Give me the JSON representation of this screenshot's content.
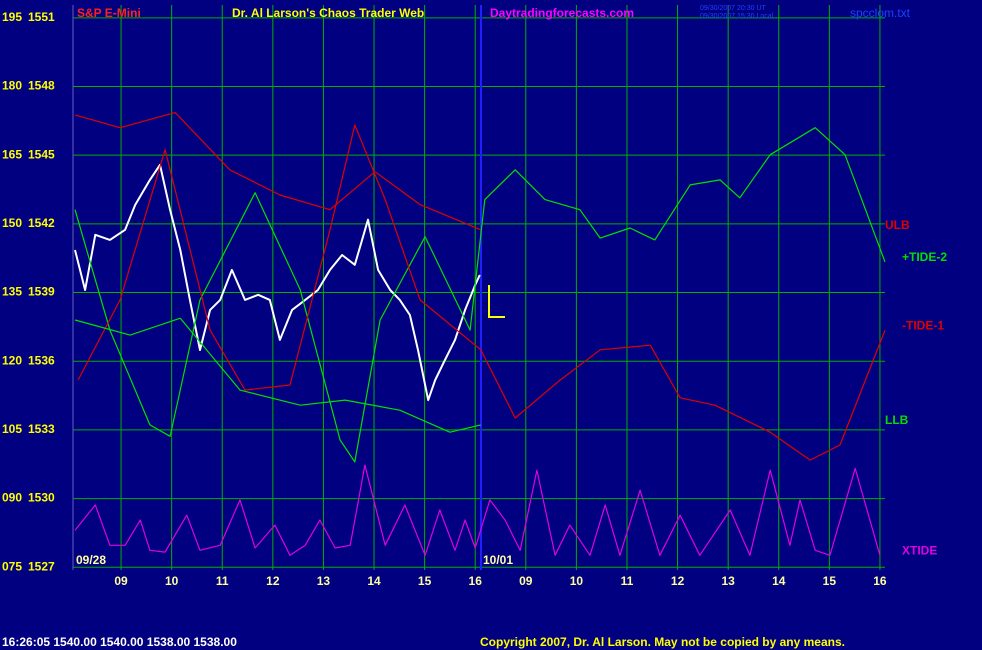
{
  "chart_data": {
    "type": "line",
    "title": "Dr. Al Larson's Chaos Trader Web",
    "symbol": "S&P E-Mini",
    "site": "Daytradingforecasts.com",
    "timestamps": [
      "09/30/2007 20:30 UT",
      "09/30/2007 15:30 Local"
    ],
    "file": "spcclom.txt",
    "status": "16:26:05  1540.00 1540.00 1538.00 1538.00",
    "copyright": "Copyright 2007, Dr. Al Larson. May not be copied by any means.",
    "date_labels": [
      "09/28",
      "10/01"
    ],
    "grid": true,
    "xlim": [
      0.05,
      16.1
    ],
    "xticks": [
      {
        "value": 1,
        "label": "09"
      },
      {
        "value": 2,
        "label": "10"
      },
      {
        "value": 3,
        "label": "11"
      },
      {
        "value": 4,
        "label": "12"
      },
      {
        "value": 5,
        "label": "13"
      },
      {
        "value": 6,
        "label": "14"
      },
      {
        "value": 7,
        "label": "15"
      },
      {
        "value": 8,
        "label": "16"
      },
      {
        "value": 9,
        "label": "09"
      },
      {
        "value": 10,
        "label": "10"
      },
      {
        "value": 11,
        "label": "11"
      },
      {
        "value": 12,
        "label": "12"
      },
      {
        "value": 13,
        "label": "13"
      },
      {
        "value": 14,
        "label": "14"
      },
      {
        "value": 15,
        "label": "15"
      },
      {
        "value": 16,
        "label": "16"
      }
    ],
    "ylim": [
      74.4,
      197.8
    ],
    "yticks": [
      195,
      180,
      165,
      150,
      135,
      120,
      105,
      {
        "value": 90,
        "label": "090"
      },
      {
        "value": 75,
        "label": "075"
      }
    ],
    "y2lim": [
      1526.88,
      1551.56
    ],
    "y2ticks": [
      1551,
      1548,
      1545,
      1542,
      1539,
      1536,
      1533,
      1530,
      1527
    ],
    "series": [
      {
        "color": "#ffffff",
        "axis": "y2",
        "x": [
          0.09,
          0.29,
          0.49,
          0.78,
          1.08,
          1.28,
          1.57,
          1.77,
          1.97,
          2.17,
          2.36,
          2.56,
          2.76,
          2.96,
          3.19,
          3.45,
          3.71,
          3.94,
          4.14,
          4.38,
          4.64,
          4.89,
          5.13,
          5.37,
          5.62,
          5.88,
          6.08,
          6.32,
          6.51,
          6.71,
          6.87,
          7.07,
          7.21,
          7.4,
          7.6,
          7.8,
          8.0,
          8.09
        ],
        "values": [
          1540.86,
          1539.11,
          1541.52,
          1541.3,
          1541.74,
          1542.83,
          1543.92,
          1544.58,
          1542.61,
          1540.86,
          1538.68,
          1536.49,
          1538.24,
          1538.68,
          1539.99,
          1538.68,
          1538.9,
          1538.68,
          1536.93,
          1538.24,
          1538.68,
          1539.11,
          1539.99,
          1540.64,
          1540.21,
          1542.18,
          1539.99,
          1539.11,
          1538.68,
          1538.02,
          1536.49,
          1534.3,
          1535.18,
          1536.05,
          1536.93,
          1538.24,
          1539.33,
          1539.77
        ]
      },
      {
        "name": "ULB",
        "color": "#e00000",
        "x": [
          0.09,
          0.98,
          2.07,
          3.15,
          4.14,
          5.13,
          6.02,
          6.91,
          8.11
        ],
        "values": [
          173.8,
          171.0,
          174.3,
          161.8,
          156.3,
          153.1,
          161.4,
          154.2,
          148.7
        ]
      },
      {
        "name": "+TIDE-2",
        "color": "#00e000",
        "x": [
          0.09,
          0.78,
          1.57,
          1.97,
          2.56,
          3.65,
          4.54,
          5.33,
          5.62,
          6.12,
          7.01,
          7.9,
          8.19,
          8.79,
          9.38,
          10.07,
          10.47,
          11.06,
          11.55,
          12.25,
          12.84,
          13.23,
          13.83,
          14.72,
          15.31,
          16.1
        ],
        "values": [
          153.1,
          126.8,
          106.1,
          103.6,
          133.4,
          156.8,
          135.6,
          102.8,
          98.0,
          129.0,
          147.2,
          126.8,
          155.3,
          161.8,
          155.3,
          153.1,
          146.9,
          149.1,
          146.5,
          158.5,
          159.6,
          155.7,
          165.1,
          171.0,
          165.1,
          141.7
        ]
      },
      {
        "name": "-TIDE-1",
        "color": "#e00000",
        "x": [
          0.15,
          0.98,
          1.87,
          2.76,
          3.45,
          4.34,
          5.13,
          5.62,
          6.22,
          6.91,
          8.11,
          8.79,
          9.68,
          10.47,
          11.46,
          12.05,
          12.74,
          13.83,
          14.62,
          15.21,
          16.1
        ],
        "values": [
          115.9,
          133.4,
          166.2,
          126.8,
          113.7,
          114.8,
          148.7,
          171.6,
          155.3,
          133.4,
          122.5,
          107.6,
          115.9,
          122.5,
          123.5,
          112.0,
          110.4,
          104.5,
          98.4,
          101.7,
          126.8
        ]
      },
      {
        "name": "LLB",
        "color": "#00e000",
        "x": [
          0.09,
          1.18,
          2.17,
          3.35,
          4.54,
          5.43,
          6.51,
          7.5,
          8.11
        ],
        "values": [
          129.0,
          125.7,
          129.4,
          113.7,
          110.4,
          111.5,
          109.3,
          104.5,
          106.1
        ]
      },
      {
        "name": "XTIDE",
        "color": "#e000e0",
        "x": [
          0.09,
          0.49,
          0.78,
          1.08,
          1.38,
          1.57,
          1.87,
          2.3,
          2.56,
          2.96,
          3.35,
          3.65,
          4.04,
          4.34,
          4.64,
          4.93,
          5.23,
          5.53,
          5.82,
          6.22,
          6.61,
          7.01,
          7.3,
          7.6,
          7.8,
          8.0,
          8.29,
          8.59,
          8.89,
          9.22,
          9.58,
          9.87,
          10.27,
          10.57,
          10.86,
          11.26,
          11.65,
          12.05,
          12.44,
          13.04,
          13.43,
          13.83,
          14.22,
          14.42,
          14.72,
          15.01,
          15.51,
          16.0
        ],
        "values": [
          83.1,
          88.6,
          79.8,
          79.8,
          85.3,
          78.7,
          78.3,
          86.4,
          78.7,
          79.8,
          89.7,
          79.2,
          84.2,
          77.6,
          79.8,
          85.3,
          79.2,
          79.8,
          97.3,
          79.8,
          88.6,
          77.6,
          87.5,
          78.7,
          85.3,
          79.2,
          89.7,
          85.3,
          78.7,
          96.2,
          77.6,
          84.2,
          77.6,
          88.6,
          77.6,
          91.8,
          77.6,
          86.4,
          77.6,
          87.5,
          77.6,
          96.2,
          79.8,
          89.7,
          78.7,
          77.6,
          96.6,
          77.6
        ]
      }
    ]
  }
}
